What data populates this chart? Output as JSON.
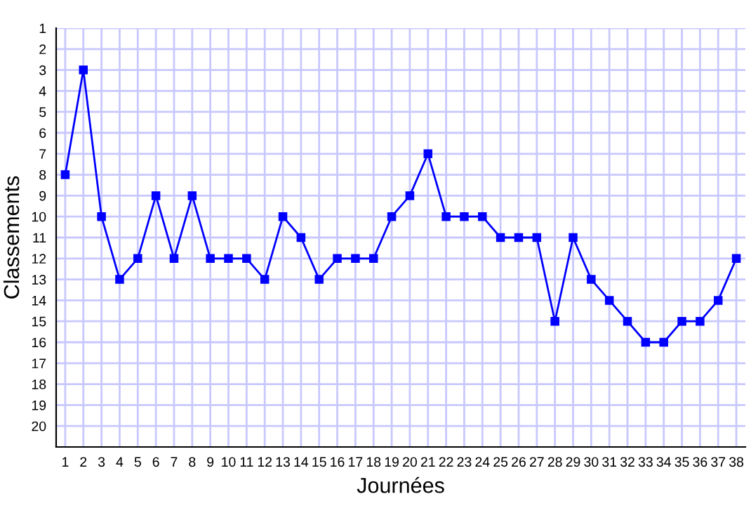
{
  "chart_data": {
    "type": "line",
    "xlabel": "Journées",
    "ylabel": "Classements",
    "x": [
      1,
      2,
      3,
      4,
      5,
      6,
      7,
      8,
      9,
      10,
      11,
      12,
      13,
      14,
      15,
      16,
      17,
      18,
      19,
      20,
      21,
      22,
      23,
      24,
      25,
      26,
      27,
      28,
      29,
      30,
      31,
      32,
      33,
      34,
      35,
      36,
      37,
      38
    ],
    "series": [
      {
        "color": "#0000ff",
        "values": [
          8,
          3,
          10,
          13,
          12,
          9,
          12,
          9,
          12,
          12,
          12,
          13,
          10,
          11,
          13,
          12,
          12,
          12,
          10,
          9,
          7,
          10,
          10,
          10,
          11,
          11,
          11,
          15,
          11,
          13,
          14,
          15,
          16,
          16,
          15,
          15,
          14,
          12
        ]
      }
    ],
    "xlim": [
      0.5,
      38.5
    ],
    "ylim": [
      21,
      1
    ],
    "xticks": [
      1,
      2,
      3,
      4,
      5,
      6,
      7,
      8,
      9,
      10,
      11,
      12,
      13,
      14,
      15,
      16,
      17,
      18,
      19,
      20,
      21,
      22,
      23,
      24,
      25,
      26,
      27,
      28,
      29,
      30,
      31,
      32,
      33,
      34,
      35,
      36,
      37,
      38
    ],
    "yticks": [
      1,
      2,
      3,
      4,
      5,
      6,
      7,
      8,
      9,
      10,
      11,
      12,
      13,
      14,
      15,
      16,
      17,
      18,
      19,
      20
    ],
    "grid": true,
    "marker": "square",
    "line_style": "solid",
    "legend": false
  }
}
